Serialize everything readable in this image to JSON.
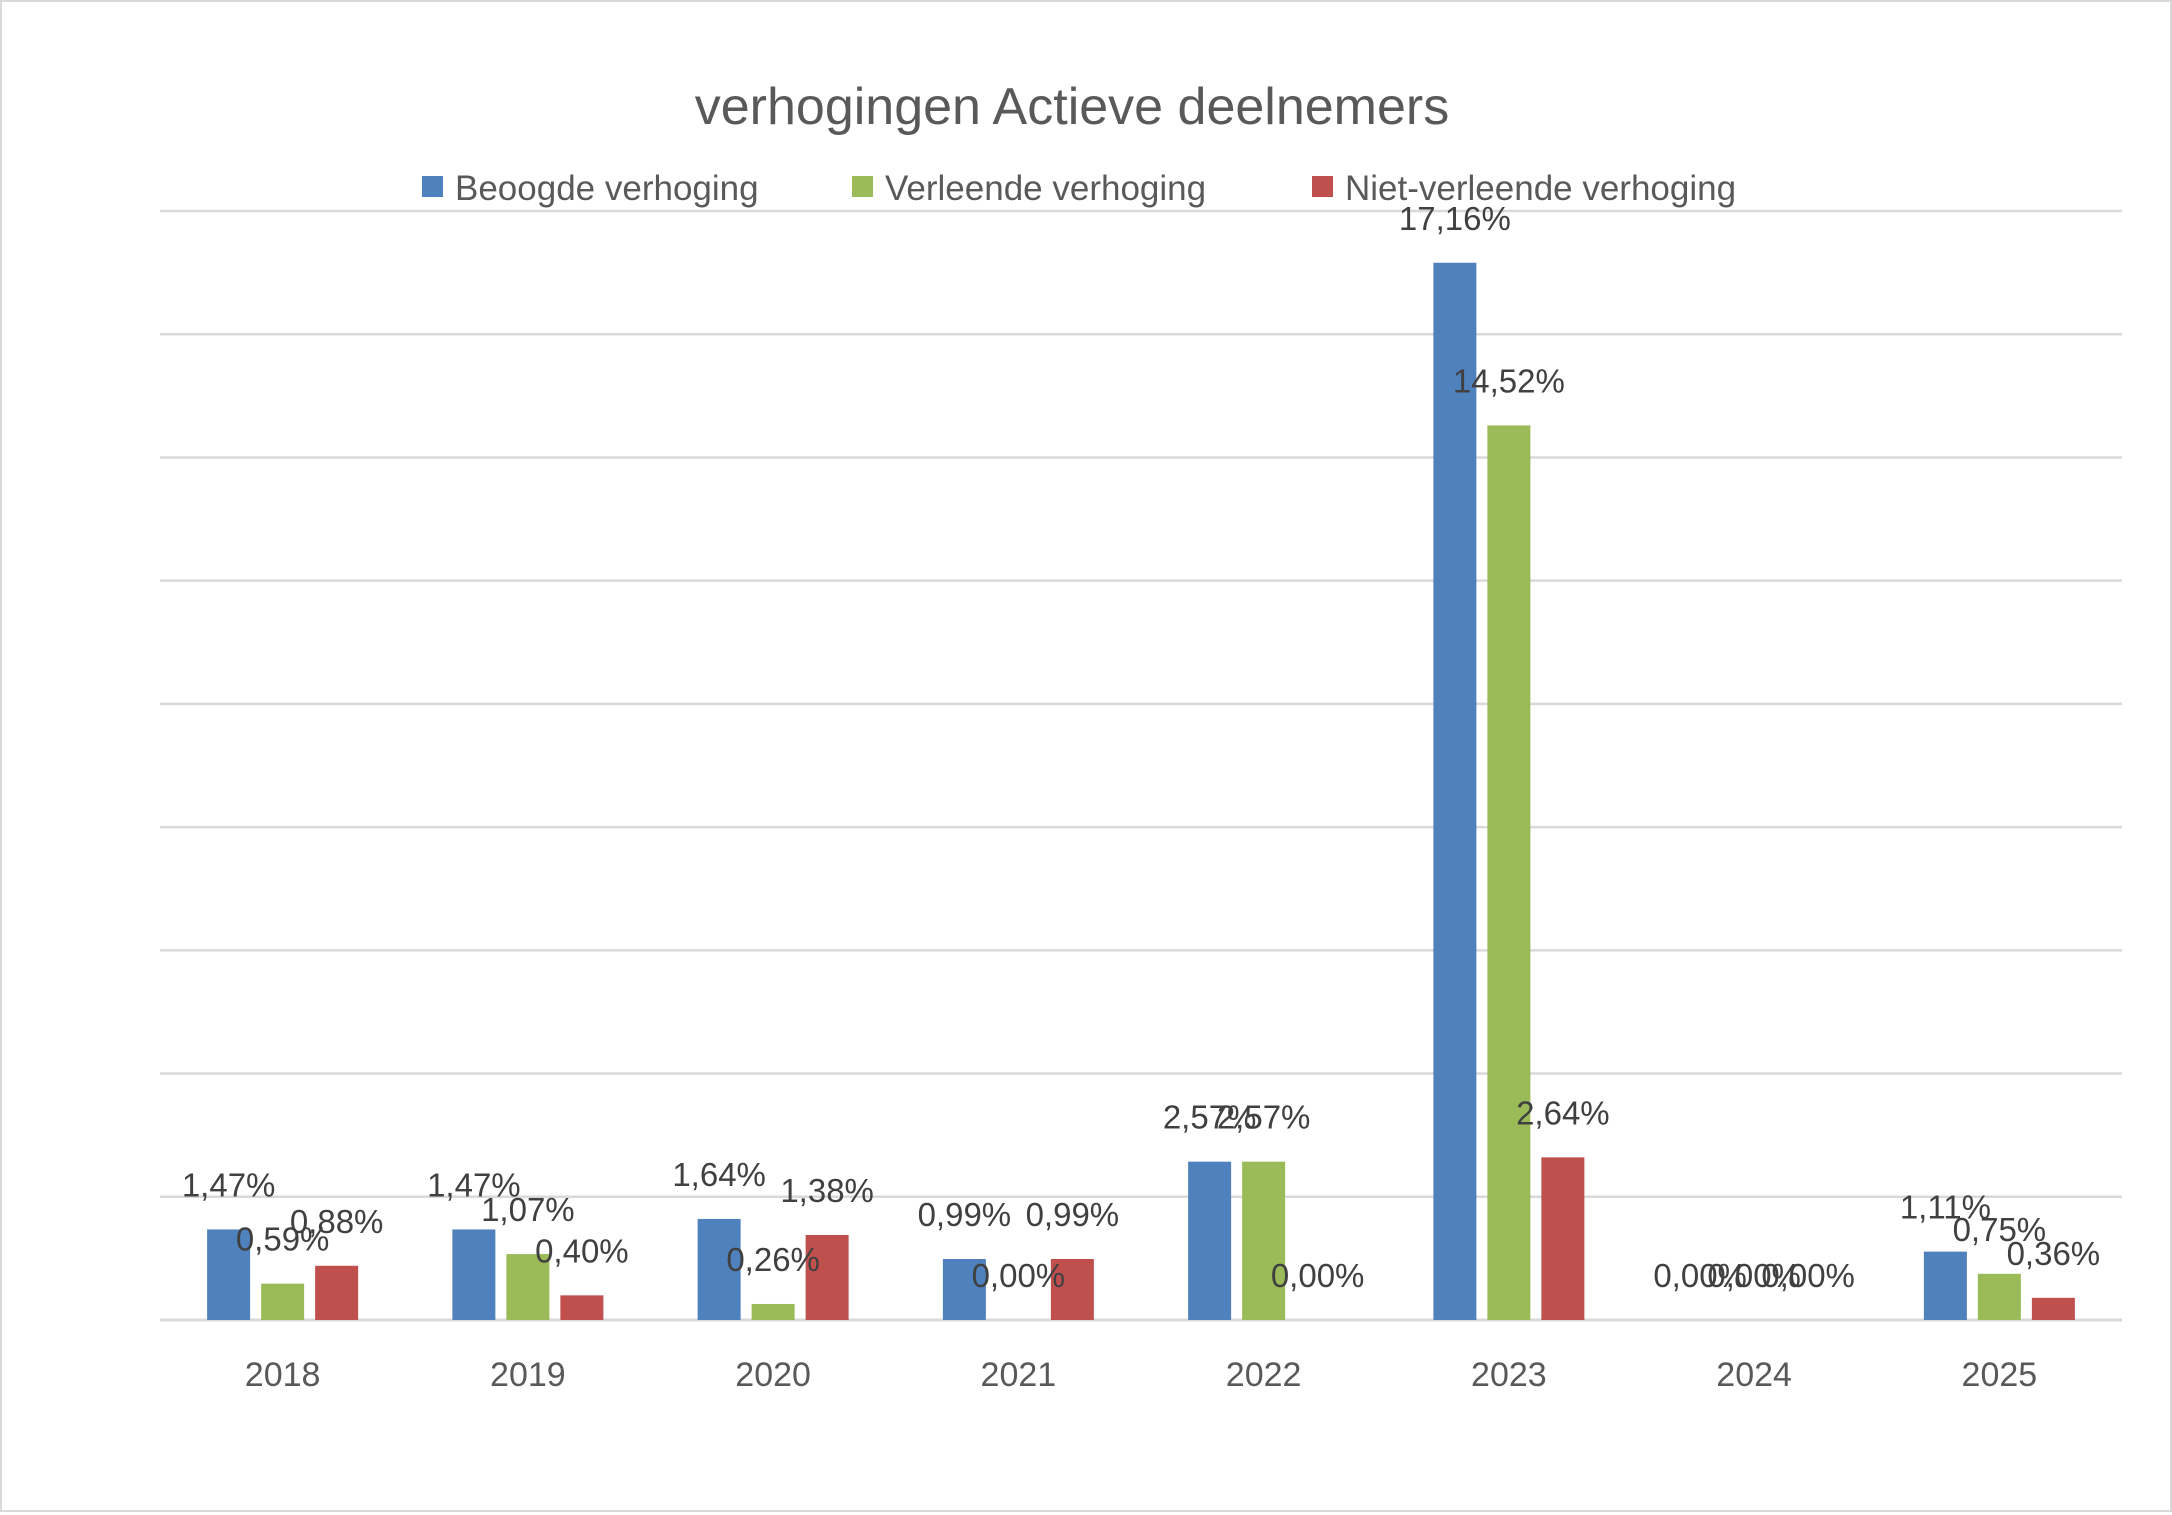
{
  "chart_data": {
    "type": "bar",
    "title": "verhogingen Actieve deelnemers",
    "categories": [
      "2018",
      "2019",
      "2020",
      "2021",
      "2022",
      "2023",
      "2024",
      "2025"
    ],
    "series": [
      {
        "name": "Beoogde verhoging",
        "color": "#4F81BD",
        "values": [
          1.47,
          1.47,
          1.64,
          0.99,
          2.57,
          17.16,
          0.0,
          1.11
        ],
        "labels": [
          "1,47%",
          "1,47%",
          "1,64%",
          "0,99%",
          "2,57%",
          "17,16%",
          "0,00%",
          "1,11%"
        ]
      },
      {
        "name": "Verleende verhoging",
        "color": "#9BBB59",
        "values": [
          0.59,
          1.07,
          0.26,
          0.0,
          2.57,
          14.52,
          0.0,
          0.75
        ],
        "labels": [
          "0,59%",
          "1,07%",
          "0,26%",
          "0,00%",
          "2,57%",
          "14,52%",
          "0,00%",
          "0,75%"
        ]
      },
      {
        "name": "Niet-verleende verhoging",
        "color": "#C0504D",
        "values": [
          0.88,
          0.4,
          1.38,
          0.99,
          0.0,
          2.64,
          0.0,
          0.36
        ],
        "labels": [
          "0,88%",
          "0,40%",
          "1,38%",
          "0,99%",
          "0,00%",
          "2,64%",
          "0,00%",
          "0,36%"
        ]
      }
    ],
    "ylim": [
      0,
      18
    ],
    "grid": true,
    "legend_position": "top"
  }
}
